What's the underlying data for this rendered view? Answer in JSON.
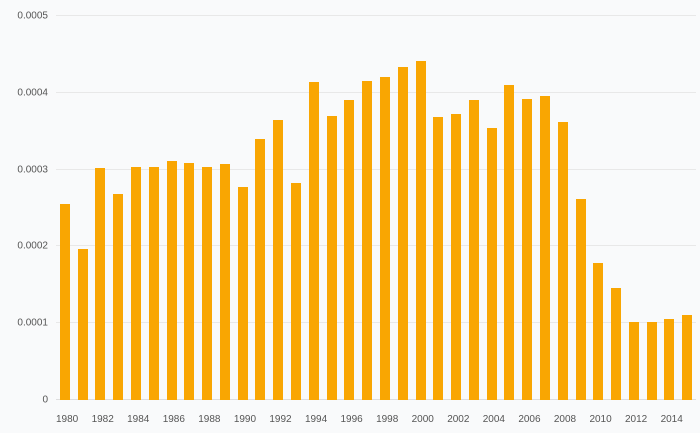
{
  "chart_data": {
    "type": "bar",
    "title": "",
    "xlabel": "",
    "ylabel": "",
    "categories": [
      1980,
      1981,
      1982,
      1983,
      1984,
      1985,
      1986,
      1987,
      1988,
      1989,
      1990,
      1991,
      1992,
      1993,
      1994,
      1995,
      1996,
      1997,
      1998,
      1999,
      2000,
      2001,
      2002,
      2003,
      2004,
      2005,
      2006,
      2007,
      2008,
      2009,
      2010,
      2011,
      2012,
      2013,
      2014,
      2015
    ],
    "values": [
      0.000255,
      0.000197,
      0.000302,
      0.000268,
      0.000303,
      0.000304,
      0.000311,
      0.000308,
      0.000303,
      0.000307,
      0.000277,
      0.00034,
      0.000365,
      0.000283,
      0.000414,
      0.00037,
      0.000391,
      0.000415,
      0.000421,
      0.000433,
      0.000441,
      0.000368,
      0.000373,
      0.00039,
      0.000354,
      0.00041,
      0.000392,
      0.000396,
      0.000362,
      0.000262,
      0.000178,
      0.000146,
      0.000102,
      0.000101,
      0.000105,
      0.000111
    ],
    "ylim": [
      0,
      0.0005
    ],
    "y_ticks": [
      0,
      0.0001,
      0.0002,
      0.0003,
      0.0004,
      0.0005
    ],
    "y_tick_labels": [
      "0",
      "0.0001",
      "0.0002",
      "0.0003",
      "0.0004",
      "0.0005"
    ],
    "x_tick_interval": 2,
    "grid": true,
    "legend": "none",
    "bar_color": "#f9a602",
    "background_color": "#f9fafb",
    "gridline_color": "#e8e8e8"
  }
}
